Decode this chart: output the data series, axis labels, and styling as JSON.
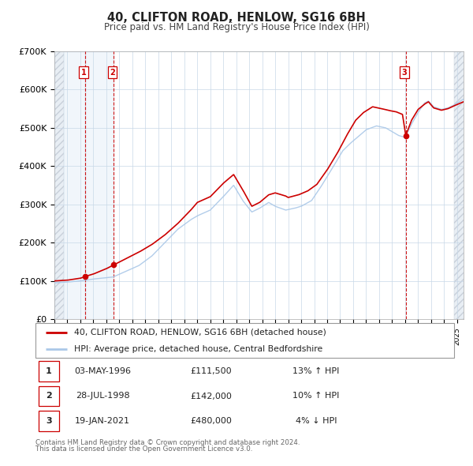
{
  "title": "40, CLIFTON ROAD, HENLOW, SG16 6BH",
  "subtitle": "Price paid vs. HM Land Registry's House Price Index (HPI)",
  "xlim": [
    1994.0,
    2025.5
  ],
  "ylim": [
    0,
    700000
  ],
  "yticks": [
    0,
    100000,
    200000,
    300000,
    400000,
    500000,
    600000,
    700000
  ],
  "ytick_labels": [
    "£0",
    "£100K",
    "£200K",
    "£300K",
    "£400K",
    "£500K",
    "£600K",
    "£700K"
  ],
  "sale_dates": [
    1996.35,
    1998.57,
    2021.05
  ],
  "sale_prices": [
    111500,
    142000,
    480000
  ],
  "sale_labels": [
    "1",
    "2",
    "3"
  ],
  "hpi_color": "#aac8e8",
  "price_color": "#cc0000",
  "vline_color": "#cc0000",
  "grid_color": "#c8d8e8",
  "legend_label_price": "40, CLIFTON ROAD, HENLOW, SG16 6BH (detached house)",
  "legend_label_hpi": "HPI: Average price, detached house, Central Bedfordshire",
  "table_rows": [
    {
      "num": "1",
      "date": "03-MAY-1996",
      "price": "£111,500",
      "hpi": "13% ↑ HPI"
    },
    {
      "num": "2",
      "date": "28-JUL-1998",
      "price": "£142,000",
      "hpi": "10% ↑ HPI"
    },
    {
      "num": "3",
      "date": "19-JAN-2021",
      "price": "£480,000",
      "hpi": "4% ↓ HPI"
    }
  ],
  "footnote1": "Contains HM Land Registry data © Crown copyright and database right 2024.",
  "footnote2": "This data is licensed under the Open Government Licence v3.0.",
  "hpi_anchors": [
    [
      1994.0,
      95000
    ],
    [
      1995.0,
      97000
    ],
    [
      1996.0,
      100000
    ],
    [
      1997.0,
      105000
    ],
    [
      1998.5,
      110000
    ],
    [
      1999.5,
      125000
    ],
    [
      2000.5,
      140000
    ],
    [
      2001.5,
      165000
    ],
    [
      2002.5,
      200000
    ],
    [
      2003.5,
      235000
    ],
    [
      2004.5,
      260000
    ],
    [
      2005.0,
      270000
    ],
    [
      2006.0,
      285000
    ],
    [
      2007.0,
      320000
    ],
    [
      2007.8,
      350000
    ],
    [
      2008.5,
      310000
    ],
    [
      2009.2,
      280000
    ],
    [
      2009.8,
      290000
    ],
    [
      2010.5,
      305000
    ],
    [
      2011.0,
      295000
    ],
    [
      2011.8,
      285000
    ],
    [
      2012.5,
      290000
    ],
    [
      2013.0,
      295000
    ],
    [
      2013.8,
      310000
    ],
    [
      2014.5,
      345000
    ],
    [
      2015.5,
      400000
    ],
    [
      2016.2,
      440000
    ],
    [
      2016.8,
      460000
    ],
    [
      2017.5,
      480000
    ],
    [
      2018.0,
      495000
    ],
    [
      2018.8,
      505000
    ],
    [
      2019.5,
      500000
    ],
    [
      2020.0,
      490000
    ],
    [
      2020.5,
      480000
    ],
    [
      2021.0,
      475000
    ],
    [
      2021.5,
      510000
    ],
    [
      2022.0,
      540000
    ],
    [
      2022.5,
      565000
    ],
    [
      2022.8,
      570000
    ],
    [
      2023.2,
      555000
    ],
    [
      2023.8,
      548000
    ],
    [
      2024.3,
      552000
    ],
    [
      2024.8,
      560000
    ],
    [
      2025.5,
      575000
    ]
  ],
  "price_anchors": [
    [
      1994.0,
      100000
    ],
    [
      1995.0,
      102000
    ],
    [
      1996.0,
      107000
    ],
    [
      1996.35,
      111500
    ],
    [
      1997.0,
      118000
    ],
    [
      1998.0,
      132000
    ],
    [
      1998.57,
      142000
    ],
    [
      1999.5,
      158000
    ],
    [
      2000.5,
      175000
    ],
    [
      2001.5,
      195000
    ],
    [
      2002.5,
      220000
    ],
    [
      2003.5,
      250000
    ],
    [
      2004.5,
      285000
    ],
    [
      2005.0,
      305000
    ],
    [
      2006.0,
      320000
    ],
    [
      2007.0,
      355000
    ],
    [
      2007.8,
      378000
    ],
    [
      2008.5,
      338000
    ],
    [
      2009.2,
      295000
    ],
    [
      2009.8,
      305000
    ],
    [
      2010.5,
      325000
    ],
    [
      2011.0,
      330000
    ],
    [
      2011.8,
      322000
    ],
    [
      2012.0,
      318000
    ],
    [
      2012.8,
      325000
    ],
    [
      2013.5,
      335000
    ],
    [
      2014.2,
      352000
    ],
    [
      2015.0,
      390000
    ],
    [
      2015.8,
      435000
    ],
    [
      2016.5,
      480000
    ],
    [
      2017.2,
      520000
    ],
    [
      2017.8,
      540000
    ],
    [
      2018.5,
      555000
    ],
    [
      2019.2,
      550000
    ],
    [
      2019.8,
      545000
    ],
    [
      2020.3,
      542000
    ],
    [
      2020.8,
      535000
    ],
    [
      2021.05,
      480000
    ],
    [
      2021.5,
      520000
    ],
    [
      2022.0,
      548000
    ],
    [
      2022.5,
      562000
    ],
    [
      2022.8,
      568000
    ],
    [
      2023.2,
      552000
    ],
    [
      2023.8,
      546000
    ],
    [
      2024.3,
      550000
    ],
    [
      2024.8,
      558000
    ],
    [
      2025.5,
      568000
    ]
  ]
}
